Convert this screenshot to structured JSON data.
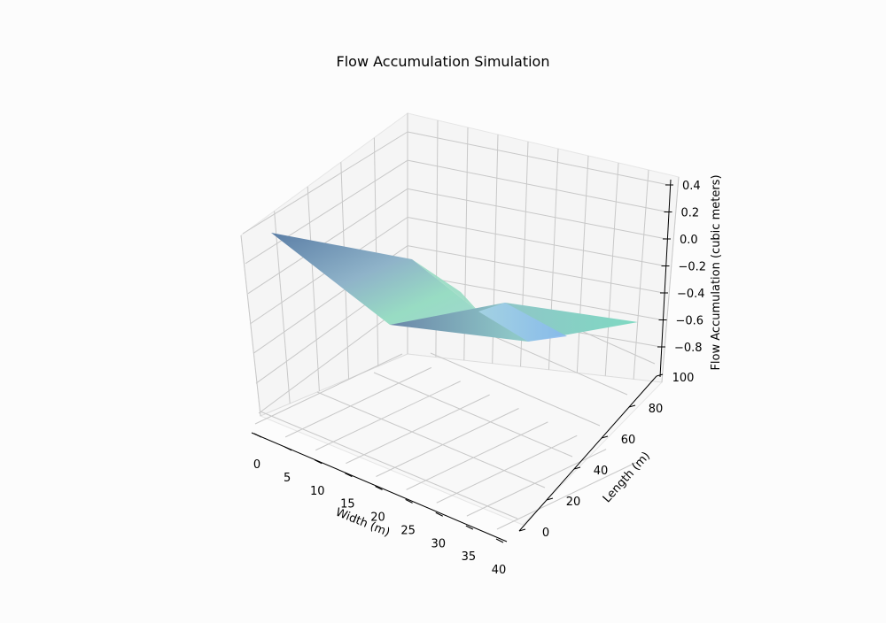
{
  "chart_data": {
    "type": "surface3d",
    "title": "Flow Accumulation Simulation",
    "xlabel": "Width (m)",
    "ylabel": "Length (m)",
    "zlabel": "Flow Accumulation (cubic meters)",
    "x_ticks": [
      0,
      5,
      10,
      15,
      20,
      25,
      30,
      35,
      40
    ],
    "y_ticks": [
      0,
      20,
      40,
      60,
      80,
      100
    ],
    "z_ticks": [
      "0.4",
      "0.2",
      "0.0",
      "−0.2",
      "−0.4",
      "−0.6",
      "−0.8"
    ],
    "xlim": [
      0,
      40
    ],
    "ylim": [
      0,
      100
    ],
    "zlim": [
      -0.9,
      0.4
    ],
    "grid": true,
    "colors": [
      "#5b7ea6",
      "#8fb3c9",
      "#98dcc3",
      "#86c5f0"
    ],
    "surface_corners": [
      {
        "x": 0,
        "y": 0,
        "z": 0.0
      },
      {
        "x": 40,
        "y": 0,
        "z": -0.85
      },
      {
        "x": 40,
        "y": 100,
        "z": -0.6
      },
      {
        "x": 0,
        "y": 100,
        "z": -0.25
      }
    ]
  }
}
